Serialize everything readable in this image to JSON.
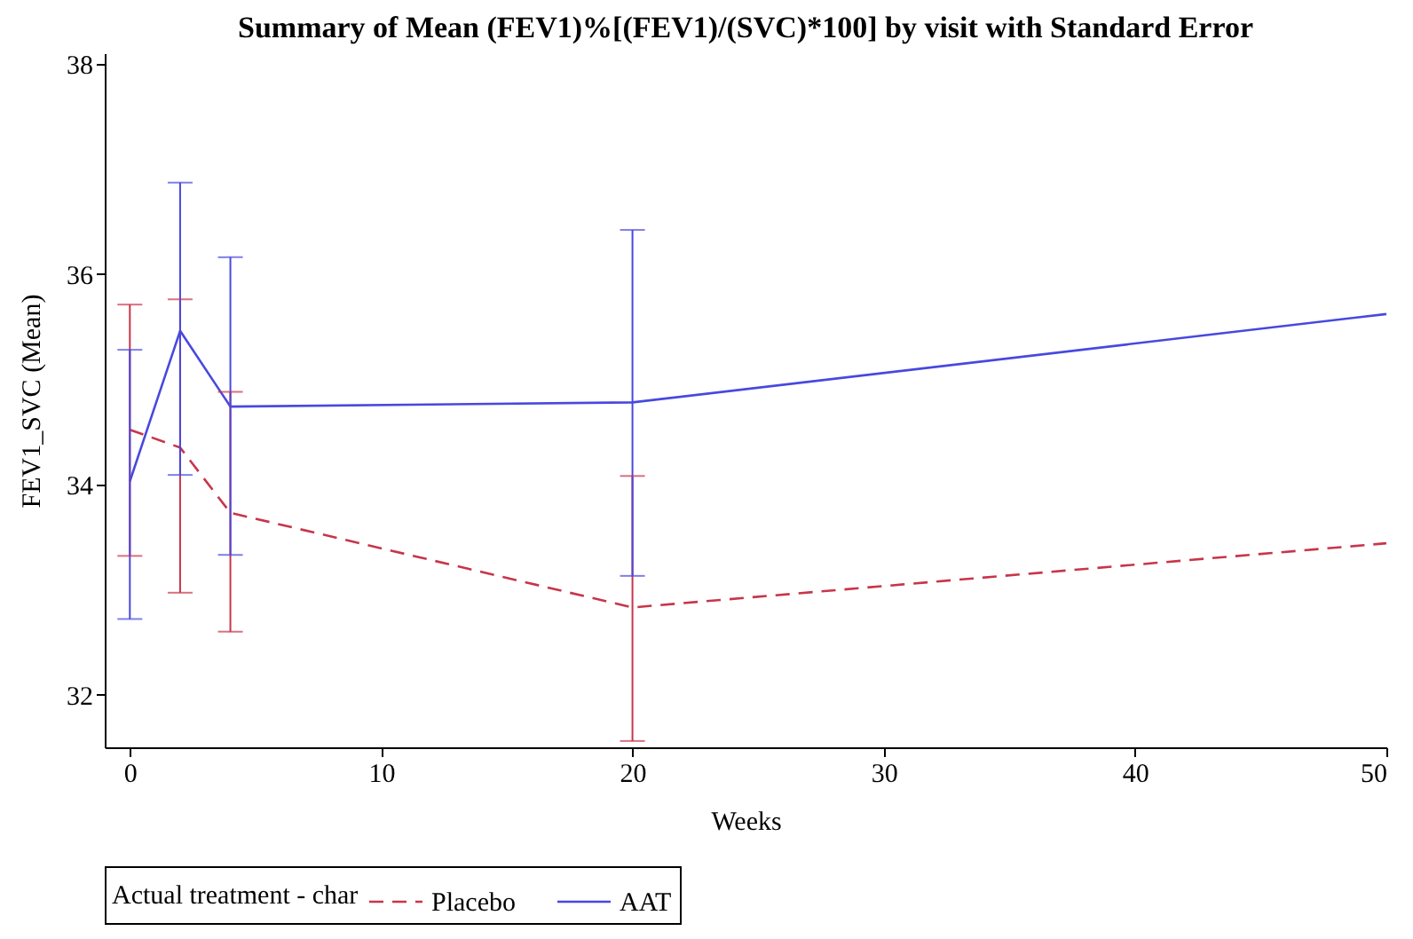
{
  "chart_data": {
    "type": "line",
    "title": "Summary of Mean (FEV1)%[(FEV1)/(SVC)*100] by visit with Standard Error",
    "xlabel": "Weeks",
    "ylabel": "FEV1_SVC (Mean)",
    "legend_title": "Actual treatment - char",
    "x": [
      0,
      2,
      4,
      20,
      50
    ],
    "series": [
      {
        "name": "Placebo",
        "color": "#c8354a",
        "line_style": "dashed",
        "values": [
          34.52,
          34.35,
          33.73,
          32.83,
          33.44
        ],
        "errors": [
          [
            33.32,
            35.71
          ],
          [
            32.97,
            35.76
          ],
          [
            32.6,
            34.88
          ],
          [
            31.56,
            34.08
          ],
          null
        ]
      },
      {
        "name": "AAT",
        "color": "#4848e0",
        "line_style": "solid",
        "values": [
          34.03,
          35.46,
          34.74,
          34.78,
          35.62
        ],
        "errors": [
          [
            32.72,
            35.28
          ],
          [
            34.09,
            36.87
          ],
          [
            33.33,
            36.16
          ],
          [
            33.13,
            36.42
          ],
          null
        ]
      }
    ],
    "xlim": [
      -1,
      50
    ],
    "xticks": [
      0,
      10,
      20,
      30,
      40,
      50
    ],
    "ylim": [
      31.5,
      38.1
    ],
    "yticks": [
      32,
      34,
      36,
      38
    ],
    "legend": "bottom",
    "grid": false,
    "marker": "none"
  }
}
